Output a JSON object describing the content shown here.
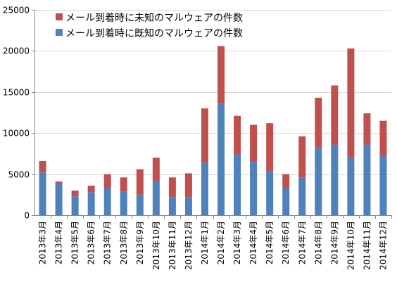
{
  "colors": {
    "known": "#4f81bd",
    "unknown": "#c0504d",
    "grid": "#d9d9d9",
    "axis": "#868686"
  },
  "chart_data": {
    "type": "bar",
    "stacked": true,
    "title": "",
    "xlabel": "",
    "ylabel": "",
    "ylim": [
      0,
      25000
    ],
    "yticks": [
      0,
      5000,
      10000,
      15000,
      20000,
      25000
    ],
    "ytick_labels": [
      "0",
      "5000",
      "10000",
      "15000",
      "20000",
      "25000"
    ],
    "grid": "horizontal",
    "legend_position": "top-left",
    "categories": [
      "2013年3月",
      "2013年4月",
      "2013年5月",
      "2013年6月",
      "2013年7月",
      "2013年8月",
      "2013年9月",
      "2013年10月",
      "2013年11月",
      "2013年12月",
      "2014年1月",
      "2014年2月",
      "2014年3月",
      "2014年4月",
      "2014年5月",
      "2014年6月",
      "2014年7月",
      "2014年8月",
      "2014年9月",
      "2014年10月",
      "2014年11月",
      "2014年12月"
    ],
    "series": [
      {
        "name": "メール到着時に既知のマルウェアの件数",
        "color": "#4f81bd",
        "values": [
          5200,
          3900,
          2300,
          2800,
          3300,
          2900,
          2500,
          4100,
          2200,
          2200,
          6400,
          13600,
          7400,
          6500,
          5400,
          3300,
          4600,
          8200,
          8600,
          7000,
          8600,
          7200
        ]
      },
      {
        "name": "メール到着時に未知のマルウェアの件数",
        "color": "#c0504d",
        "values": [
          1400,
          200,
          700,
          800,
          1700,
          1700,
          3100,
          2900,
          2400,
          2900,
          6600,
          7000,
          4700,
          4500,
          5800,
          1700,
          5000,
          6100,
          7200,
          13300,
          3800,
          4300
        ]
      }
    ]
  }
}
